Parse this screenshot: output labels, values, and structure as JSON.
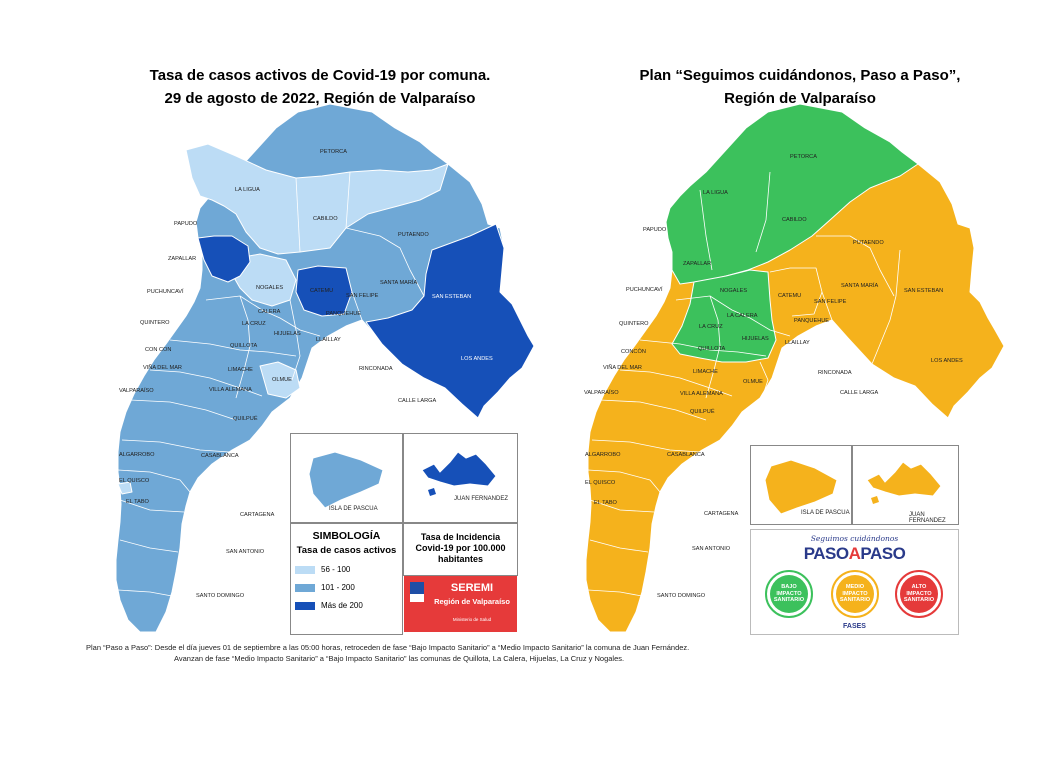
{
  "left_map": {
    "title_line1": "Tasa de casos activos de Covid-19 por comuna.",
    "title_line2": "29 de agosto de 2022, Región de Valparaíso",
    "legend": {
      "title": "SIMBOLOGÍA",
      "subtitle": "Tasa de casos activos",
      "items": [
        {
          "label": "56 - 100",
          "color": "#bcdcf5"
        },
        {
          "label": "101 - 200",
          "color": "#6fa8d6"
        },
        {
          "label": "Más de 200",
          "color": "#1650b8"
        }
      ]
    },
    "incidence_box": {
      "line1": "Tasa de Incidencia",
      "line2": "Covid-19 por 100.000",
      "line3": "habitantes"
    },
    "seremi": {
      "name": "SEREMI",
      "region": "Región de Valparaíso",
      "ministry": "Ministerio de Salud"
    },
    "insets": {
      "pascua": "ISLA DE PASCUA",
      "juan_fernandez": "JUAN FERNANDEZ"
    },
    "colors": {
      "low": "#bcdcf5",
      "mid": "#6fa8d6",
      "high": "#1650b8"
    }
  },
  "right_map": {
    "title_line1": "Plan “Seguimos cuidándonos, Paso a Paso”,",
    "title_line2": "Región de Valparaíso",
    "insets": {
      "pascua": "ISLA DE PASCUA",
      "juan_fernandez": "JUAN FERNANDEZ"
    },
    "brand": {
      "tagline": "Seguimos cuidándonos",
      "logo_a": "PASO",
      "logo_b": "A",
      "logo_c": "PASO"
    },
    "phases_label": "FASES",
    "phases": [
      {
        "l1": "BAJO",
        "l2": "IMPACTO",
        "l3": "SANITARIO",
        "color": "#3cc15c"
      },
      {
        "l1": "MEDIO",
        "l2": "IMPACTO",
        "l3": "SANITARIO",
        "color": "#f5b21c"
      },
      {
        "l1": "ALTO",
        "l2": "IMPACTO",
        "l3": "SANITARIO",
        "color": "#e53a3a"
      }
    ],
    "colors": {
      "bajo": "#3cc15c",
      "medio": "#f5b21c",
      "alto": "#e53a3a"
    }
  },
  "communes": [
    "PETORCA",
    "LA LIGUA",
    "CABILDO",
    "PAPUDO",
    "ZAPALLAR",
    "PUTAENDO",
    "NOGALES",
    "CATEMU",
    "SANTA MARÍA",
    "SAN ESTEBAN",
    "SAN FELIPE",
    "PUCHUNCAVÍ",
    "CALERA",
    "PANQUEHUE",
    "QUINTERO",
    "LA CRUZ",
    "HIJUELAS",
    "LLAILLAY",
    "CON CON",
    "QUILLOTA",
    "LOS ANDES",
    "VIÑA DEL MAR",
    "LIMACHE",
    "RINCONADA",
    "VILLA ALEMANA",
    "OLMUE",
    "VALPARAÍSO",
    "QUILPUÉ",
    "CALLE LARGA",
    "ALGARROBO",
    "CASABLANCA",
    "EL QUISCO",
    "EL TABO",
    "CARTAGENA",
    "SAN ANTONIO",
    "SANTO DOMINGO"
  ],
  "communes_right": {
    "con_con": "CONCÓN",
    "la_calera": "LA CALERA"
  },
  "footnote_line1": "Plan “Paso a Paso”: Desde el día jueves 01 de septiembre a las 05:00 horas, retroceden de fase “Bajo Impacto Sanitario” a “Medio Impacto Sanitario” la comuna de Juan Fernández.",
  "footnote_line2": "Avanzan de fase “Medio Impacto Sanitario” a “Bajo Impacto Sanitario” las comunas de Quillota, La Calera, Hijuelas, La Cruz y Nogales."
}
